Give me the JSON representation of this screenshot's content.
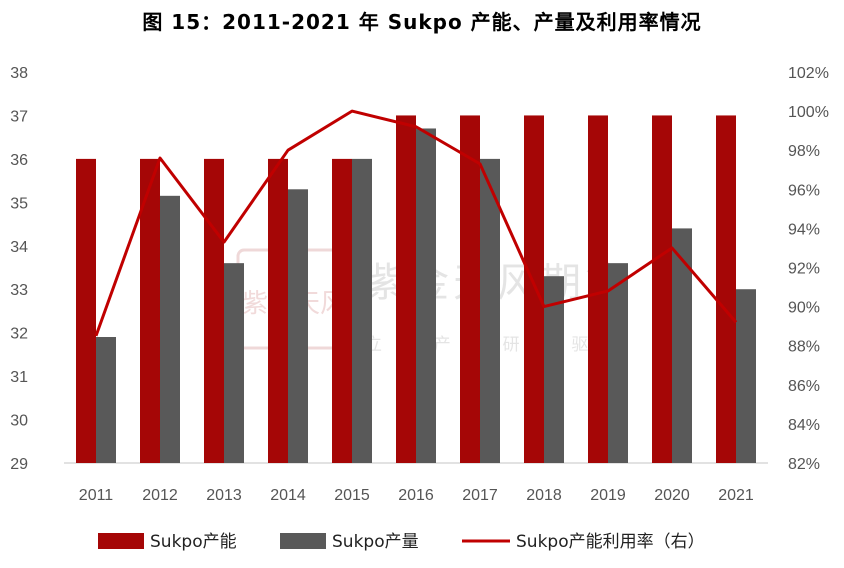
{
  "title": "图 15：2011-2021 年 Sukpo 产能、产量及利用率情况",
  "watermark": {
    "main": "紫金天风期货",
    "sub": "立 足 产 业   研 究 驱 动",
    "seal": "紫金天风"
  },
  "colors": {
    "capacity": "#A50606",
    "output": "#595959",
    "utilization": "#C00000",
    "axis": "#d9d9d9",
    "tick_text": "#555555"
  },
  "chart_data": {
    "type": "bar",
    "categories": [
      "2011",
      "2012",
      "2013",
      "2014",
      "2015",
      "2016",
      "2017",
      "2018",
      "2019",
      "2020",
      "2021"
    ],
    "series": [
      {
        "name": "Sukpo产能",
        "type": "bar",
        "axis": "left",
        "values": [
          36,
          36,
          36,
          36,
          36,
          37,
          37,
          37,
          37,
          37,
          37
        ]
      },
      {
        "name": "Sukpo产量",
        "type": "bar",
        "axis": "left",
        "values": [
          31.9,
          35.15,
          33.6,
          35.3,
          36,
          36.7,
          36,
          33.3,
          33.6,
          34.4,
          33
        ]
      },
      {
        "name": "Sukpo产能利用率（右）",
        "type": "line",
        "axis": "right",
        "values": [
          88.5,
          97.6,
          93.3,
          98.0,
          100.0,
          99.2,
          97.3,
          90.0,
          90.8,
          93.0,
          89.2
        ]
      }
    ],
    "y_left": {
      "min": 29,
      "max": 38,
      "ticks": [
        "29",
        "30",
        "31",
        "32",
        "33",
        "34",
        "35",
        "36",
        "37",
        "38"
      ]
    },
    "y_right": {
      "min": 82,
      "max": 102,
      "ticks": [
        "82%",
        "84%",
        "86%",
        "88%",
        "90%",
        "92%",
        "94%",
        "96%",
        "98%",
        "100%",
        "102%"
      ]
    },
    "legend_position": "bottom"
  }
}
